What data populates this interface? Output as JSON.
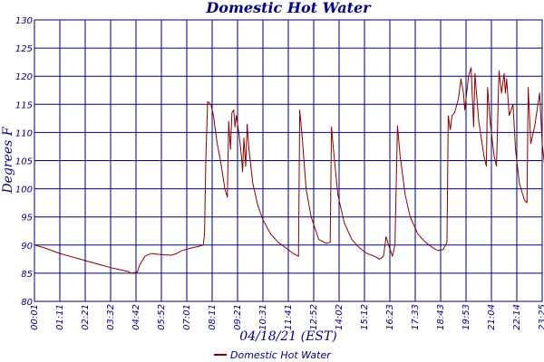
{
  "chart_data": {
    "type": "line",
    "title": "Domestic Hot Water",
    "xlabel": "04/18/21 (EST)",
    "ylabel": "Degrees F",
    "ylim": [
      80,
      130
    ],
    "yticks": [
      80,
      85,
      90,
      95,
      100,
      105,
      110,
      115,
      120,
      125,
      130
    ],
    "xticks": [
      "00:01",
      "01:11",
      "02:21",
      "03:32",
      "04:42",
      "05:52",
      "07:01",
      "08:11",
      "09:21",
      "10:31",
      "11:41",
      "12:52",
      "14:02",
      "15:12",
      "16:23",
      "17:33",
      "18:43",
      "19:53",
      "21:04",
      "22:14",
      "23:25"
    ],
    "grid": true,
    "legend_position": "bottom",
    "series": [
      {
        "name": "Domestic Hot Water",
        "color": "#8b0000",
        "points": [
          [
            0,
            90
          ],
          [
            0.4,
            89.5
          ],
          [
            0.7,
            89
          ],
          [
            1.0,
            88.5
          ],
          [
            1.4,
            88
          ],
          [
            1.8,
            87.5
          ],
          [
            2.2,
            87
          ],
          [
            2.6,
            86.5
          ],
          [
            3.0,
            86
          ],
          [
            3.4,
            85.6
          ],
          [
            3.7,
            85.3
          ],
          [
            3.8,
            85
          ],
          [
            4.05,
            85.2
          ],
          [
            4.15,
            86.5
          ],
          [
            4.35,
            88
          ],
          [
            4.6,
            88.5
          ],
          [
            5.0,
            88.3
          ],
          [
            5.4,
            88.2
          ],
          [
            5.6,
            88.5
          ],
          [
            5.8,
            89
          ],
          [
            6.2,
            89.5
          ],
          [
            6.5,
            89.8
          ],
          [
            6.65,
            90
          ],
          [
            6.7,
            92
          ],
          [
            6.75,
            105
          ],
          [
            6.82,
            115.5
          ],
          [
            6.95,
            115
          ],
          [
            7.05,
            113
          ],
          [
            7.2,
            108
          ],
          [
            7.33,
            105
          ],
          [
            7.5,
            100
          ],
          [
            7.6,
            98.5
          ],
          [
            7.65,
            112
          ],
          [
            7.72,
            107
          ],
          [
            7.78,
            113.5
          ],
          [
            7.85,
            114
          ],
          [
            7.9,
            111
          ],
          [
            7.95,
            113
          ],
          [
            8.05,
            110
          ],
          [
            8.15,
            106
          ],
          [
            8.2,
            103
          ],
          [
            8.25,
            109
          ],
          [
            8.32,
            104
          ],
          [
            8.38,
            111.5
          ],
          [
            8.45,
            107
          ],
          [
            8.6,
            101
          ],
          [
            8.8,
            97
          ],
          [
            9.0,
            94.5
          ],
          [
            9.3,
            92
          ],
          [
            9.6,
            90.5
          ],
          [
            9.9,
            89.5
          ],
          [
            10.2,
            88.5
          ],
          [
            10.4,
            88
          ],
          [
            10.45,
            114
          ],
          [
            10.55,
            109
          ],
          [
            10.7,
            100
          ],
          [
            10.9,
            95
          ],
          [
            11.2,
            91
          ],
          [
            11.5,
            90.3
          ],
          [
            11.65,
            90.5
          ],
          [
            11.7,
            111
          ],
          [
            11.8,
            106
          ],
          [
            11.95,
            99
          ],
          [
            12.2,
            94
          ],
          [
            12.5,
            91
          ],
          [
            12.8,
            89.5
          ],
          [
            13.1,
            88.5
          ],
          [
            13.4,
            88
          ],
          [
            13.6,
            87.5
          ],
          [
            13.75,
            88
          ],
          [
            13.85,
            91.5
          ],
          [
            13.95,
            90
          ],
          [
            14.1,
            88
          ],
          [
            14.2,
            90
          ],
          [
            14.3,
            111.2
          ],
          [
            14.4,
            106
          ],
          [
            14.6,
            99
          ],
          [
            14.8,
            95
          ],
          [
            15.1,
            92
          ],
          [
            15.4,
            90.5
          ],
          [
            15.7,
            89.5
          ],
          [
            15.9,
            89
          ],
          [
            16.1,
            89.2
          ],
          [
            16.25,
            90.5
          ],
          [
            16.3,
            113
          ],
          [
            16.38,
            110.5
          ],
          [
            16.45,
            113
          ],
          [
            16.55,
            113.5
          ],
          [
            16.7,
            116
          ],
          [
            16.8,
            119.5
          ],
          [
            16.9,
            117
          ],
          [
            16.95,
            114
          ],
          [
            17.1,
            120
          ],
          [
            17.2,
            121.5
          ],
          [
            17.3,
            111
          ],
          [
            17.35,
            120.5
          ],
          [
            17.5,
            112
          ],
          [
            17.7,
            106
          ],
          [
            17.8,
            104
          ],
          [
            17.85,
            118
          ],
          [
            17.95,
            112
          ],
          [
            18.1,
            106
          ],
          [
            18.2,
            104
          ],
          [
            18.3,
            121
          ],
          [
            18.4,
            117
          ],
          [
            18.5,
            120.5
          ],
          [
            18.55,
            117
          ],
          [
            18.6,
            119.5
          ],
          [
            18.7,
            113
          ],
          [
            18.85,
            115
          ],
          [
            18.95,
            107
          ],
          [
            19.1,
            101
          ],
          [
            19.3,
            98
          ],
          [
            19.4,
            97.5
          ],
          [
            19.45,
            118
          ],
          [
            19.55,
            108
          ],
          [
            19.7,
            111
          ],
          [
            19.9,
            117
          ],
          [
            20.0,
            108
          ],
          [
            20.15,
            102
          ],
          [
            20.35,
            98
          ],
          [
            20.6,
            95
          ],
          [
            20.9,
            92.5
          ],
          [
            21.3,
            91
          ],
          [
            21.7,
            90.5
          ],
          [
            21.9,
            90
          ],
          [
            21.95,
            101.5
          ],
          [
            22.0,
            115
          ],
          [
            22.1,
            108
          ],
          [
            22.2,
            119
          ],
          [
            22.3,
            113
          ],
          [
            22.45,
            107
          ],
          [
            22.65,
            102
          ],
          [
            22.85,
            98
          ],
          [
            23.05,
            95.5
          ],
          [
            23.1,
            98
          ],
          [
            23.2,
            117
          ],
          [
            23.3,
            113
          ]
        ]
      }
    ]
  }
}
